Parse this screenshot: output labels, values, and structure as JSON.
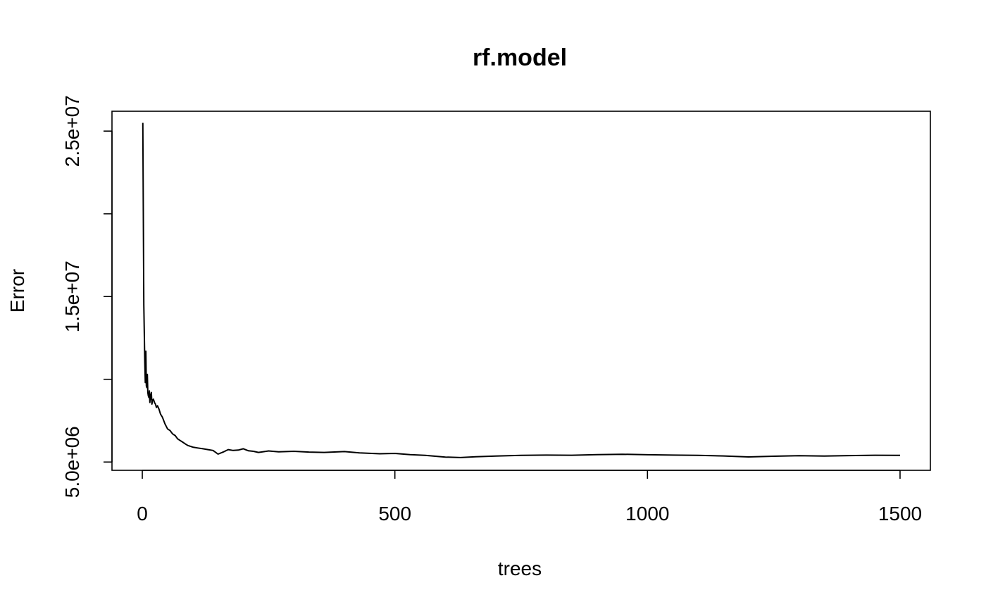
{
  "chart_data": {
    "type": "line",
    "title": "rf.model",
    "xlabel": "trees",
    "ylabel": "Error",
    "xlim": [
      -60,
      1560
    ],
    "ylim": [
      4500000,
      26200000
    ],
    "x_ticks": [
      0,
      500,
      1000,
      1500
    ],
    "x_tick_labels": [
      "0",
      "500",
      "1000",
      "1500"
    ],
    "y_ticks": [
      5000000,
      10000000,
      15000000,
      20000000,
      25000000
    ],
    "y_tick_labels": [
      "5.0e+06",
      "",
      "1.5e+07",
      "",
      "2.5e+07"
    ],
    "grid": false,
    "legend": "none",
    "line_color": "#000000",
    "series": [
      {
        "x": [
          1,
          3,
          5,
          6,
          7,
          8,
          9,
          10,
          11,
          12,
          13,
          14,
          15,
          16,
          17,
          18,
          19,
          20,
          22,
          24,
          26,
          28,
          30,
          33,
          36,
          40,
          45,
          50,
          55,
          60,
          65,
          70,
          75,
          80,
          85,
          90,
          100,
          110,
          120,
          130,
          140,
          150,
          160,
          170,
          180,
          190,
          200,
          210,
          220,
          230,
          250,
          270,
          300,
          330,
          360,
          400,
          430,
          470,
          500,
          530,
          560,
          600,
          630,
          660,
          700,
          750,
          800,
          850,
          900,
          950,
          1000,
          1050,
          1100,
          1150,
          1200,
          1250,
          1300,
          1350,
          1400,
          1450,
          1500
        ],
        "y": [
          25500000,
          14500000,
          11000000,
          9800000,
          11700000,
          9600000,
          9500000,
          10300000,
          9200000,
          9000000,
          8900000,
          9300000,
          8600000,
          9100000,
          8800000,
          9200000,
          8500000,
          8700000,
          8800000,
          8600000,
          8500000,
          8300000,
          8400000,
          8200000,
          7900000,
          7700000,
          7300000,
          7000000,
          6900000,
          6700000,
          6600000,
          6400000,
          6300000,
          6200000,
          6100000,
          6000000,
          5900000,
          5850000,
          5800000,
          5750000,
          5700000,
          5480000,
          5600000,
          5750000,
          5700000,
          5720000,
          5800000,
          5680000,
          5650000,
          5580000,
          5670000,
          5620000,
          5650000,
          5600000,
          5580000,
          5630000,
          5550000,
          5500000,
          5520000,
          5450000,
          5400000,
          5300000,
          5270000,
          5320000,
          5360000,
          5400000,
          5420000,
          5410000,
          5450000,
          5470000,
          5440000,
          5420000,
          5400000,
          5370000,
          5310000,
          5350000,
          5380000,
          5360000,
          5390000,
          5410000,
          5400000
        ]
      }
    ]
  }
}
